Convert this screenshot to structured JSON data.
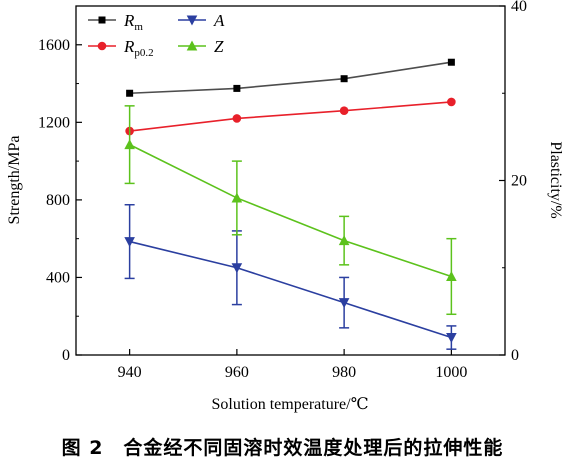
{
  "caption": "图 2　合金经不同固溶时效温度处理后的拉伸性能",
  "chart_data": {
    "type": "line",
    "xlabel": "Solution temperature/℃",
    "ylabel_left": "Strength/MPa",
    "ylabel_right": "Plasticity/%",
    "x": [
      940,
      960,
      980,
      1000
    ],
    "x_ticks": [
      "940",
      "960",
      "980",
      "1000"
    ],
    "xlim": [
      930,
      1010
    ],
    "ylim_left": [
      0,
      1800
    ],
    "y_ticks_left": [
      "0",
      "400",
      "800",
      "1200",
      "1600"
    ],
    "ylim_right": [
      0,
      40
    ],
    "y_ticks_right": [
      "0",
      "20",
      "40"
    ],
    "legend_position": "top-left",
    "series": [
      {
        "name": "R",
        "subscript": "m",
        "axis": "left",
        "marker": "square",
        "color": "#4d4d4d",
        "values": [
          1350,
          1375,
          1425,
          1510
        ]
      },
      {
        "name": "A",
        "subscript": "",
        "axis": "left",
        "marker": "triangle-down",
        "color": "#2b3fa0",
        "values": [
          585,
          450,
          270,
          90
        ],
        "errors": [
          190,
          190,
          130,
          60
        ]
      },
      {
        "name": "R",
        "subscript": "p0.2",
        "axis": "left",
        "marker": "circle",
        "color": "#e8202a",
        "values": [
          1155,
          1220,
          1260,
          1305
        ]
      },
      {
        "name": "Z",
        "subscript": "",
        "axis": "left",
        "marker": "triangle-up",
        "color": "#5cc21c",
        "values": [
          1085,
          810,
          590,
          405
        ],
        "errors": [
          200,
          190,
          125,
          195
        ]
      }
    ]
  }
}
